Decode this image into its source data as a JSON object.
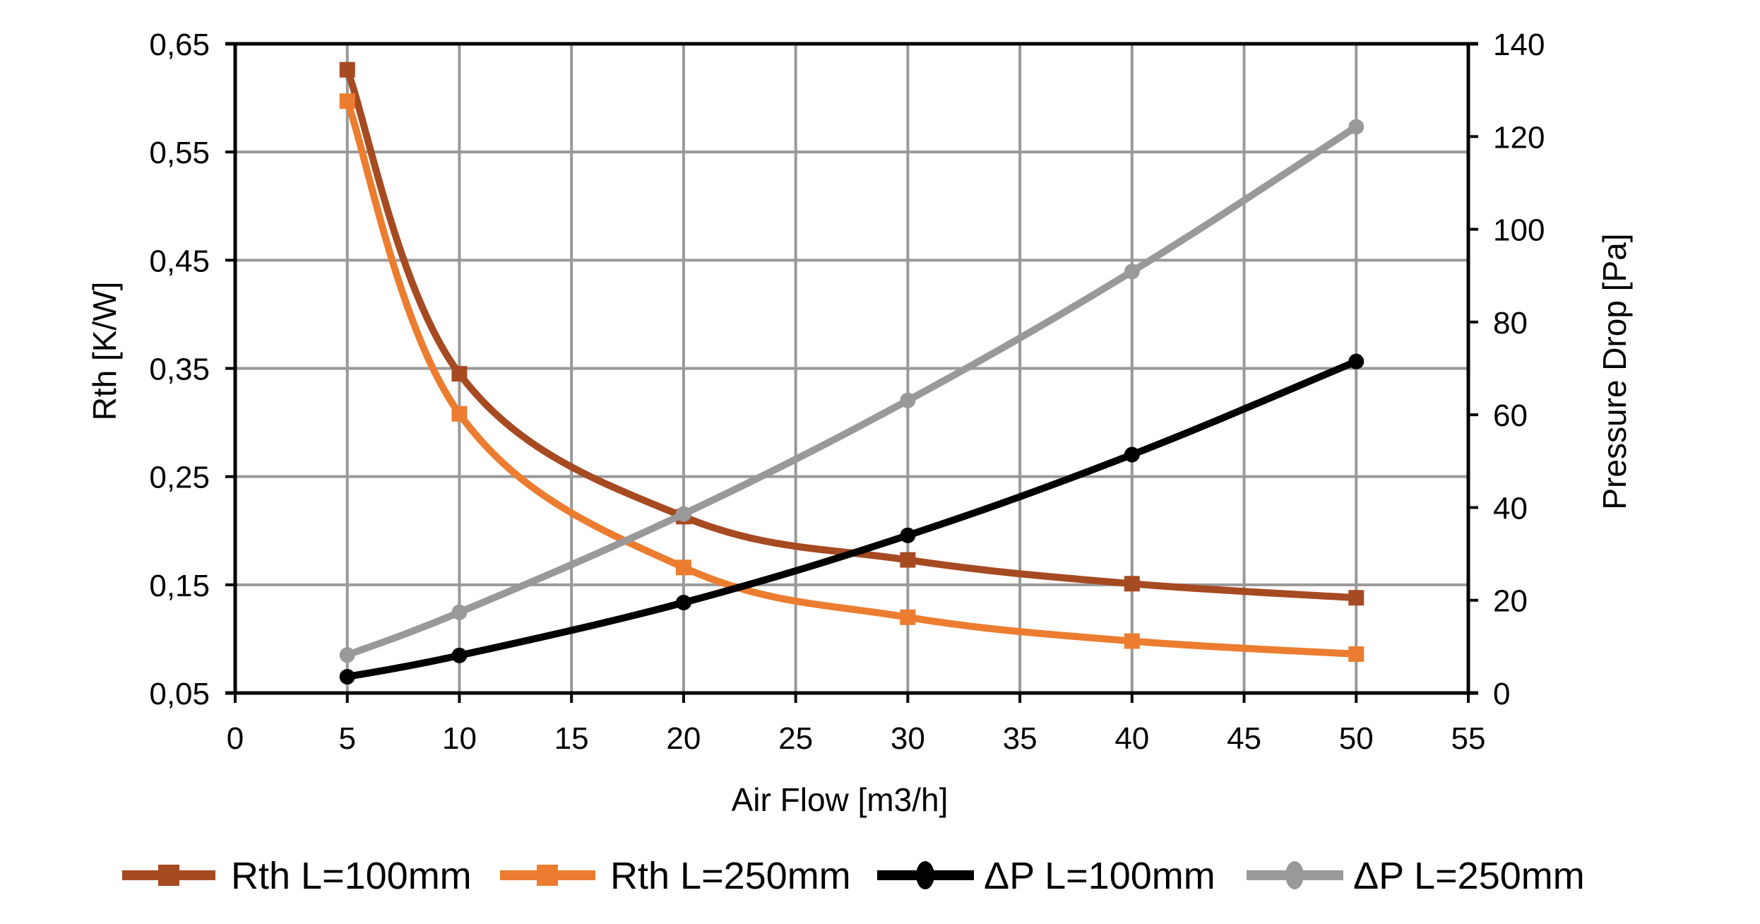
{
  "chart_data": {
    "type": "line",
    "title": "",
    "xlabel": "Air Flow [m3/h]",
    "ylabel": "Rth [K/W]",
    "y2label": "Pressure Drop [Pa]",
    "xlim": [
      0,
      55
    ],
    "ylim": [
      0.05,
      0.65
    ],
    "y2lim": [
      0,
      140
    ],
    "grid": true,
    "legend_position": "bottom",
    "x_ticks": [
      "0",
      "5",
      "10",
      "15",
      "20",
      "25",
      "30",
      "35",
      "40",
      "45",
      "50",
      "55"
    ],
    "x_tick_values": [
      0,
      5,
      10,
      15,
      20,
      25,
      30,
      35,
      40,
      45,
      50,
      55
    ],
    "y_ticks": [
      "0,05",
      "0,15",
      "0,25",
      "0,35",
      "0,45",
      "0,55",
      "0,65"
    ],
    "y_tick_values": [
      0.05,
      0.15,
      0.25,
      0.35,
      0.45,
      0.55,
      0.65
    ],
    "y2_ticks": [
      "0",
      "20",
      "40",
      "60",
      "80",
      "100",
      "120",
      "140"
    ],
    "y2_tick_values": [
      0,
      20,
      40,
      60,
      80,
      100,
      120,
      140
    ],
    "x": [
      5,
      10,
      20,
      30,
      40,
      50
    ],
    "series": [
      {
        "name": "Rth L=100mm",
        "axis": "left",
        "marker": "square",
        "color": "#A64A22",
        "values": [
          0.626,
          0.345,
          0.213,
          0.173,
          0.151,
          0.138
        ]
      },
      {
        "name": "Rth L=250mm",
        "axis": "left",
        "marker": "square",
        "color": "#EC7D30",
        "values": [
          0.597,
          0.308,
          0.166,
          0.12,
          0.098,
          0.086
        ]
      },
      {
        "name": "ΔP L=100mm",
        "axis": "right",
        "marker": "circle",
        "color": "#000000",
        "values": [
          3.5,
          8.1,
          19.5,
          34.0,
          51.4,
          71.5
        ]
      },
      {
        "name": "ΔP L=250mm",
        "axis": "right",
        "marker": "circle",
        "color": "#999999",
        "values": [
          8.2,
          17.4,
          38.6,
          63.1,
          90.9,
          122.1
        ]
      }
    ]
  },
  "colors": {
    "axis": "#000000",
    "grid": "#999999"
  }
}
